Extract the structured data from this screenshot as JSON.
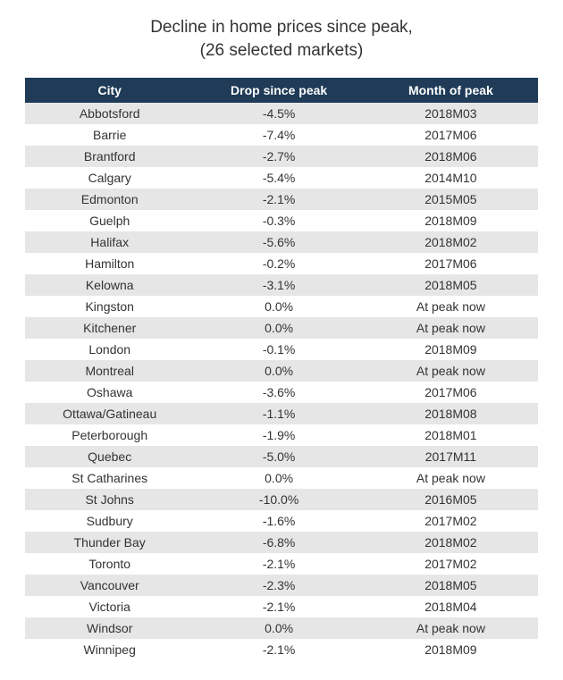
{
  "title": {
    "line1": "Decline in home prices since peak,",
    "line2": "(26 selected markets)"
  },
  "table": {
    "type": "table",
    "header_bg": "#1f3b57",
    "header_fg": "#ffffff",
    "row_alt_bg": "#e6e6e6",
    "row_bg": "#ffffff",
    "text_color": "#333333",
    "font_size": 14,
    "columns": [
      {
        "key": "city",
        "label": "City",
        "width": "33%",
        "align": "center"
      },
      {
        "key": "drop",
        "label": "Drop since peak",
        "width": "33%",
        "align": "center"
      },
      {
        "key": "month",
        "label": "Month of peak",
        "width": "34%",
        "align": "center"
      }
    ],
    "rows": [
      {
        "city": "Abbotsford",
        "drop": "-4.5%",
        "month": "2018M03"
      },
      {
        "city": "Barrie",
        "drop": "-7.4%",
        "month": "2017M06"
      },
      {
        "city": "Brantford",
        "drop": "-2.7%",
        "month": "2018M06"
      },
      {
        "city": "Calgary",
        "drop": "-5.4%",
        "month": "2014M10"
      },
      {
        "city": "Edmonton",
        "drop": "-2.1%",
        "month": "2015M05"
      },
      {
        "city": "Guelph",
        "drop": "-0.3%",
        "month": "2018M09"
      },
      {
        "city": "Halifax",
        "drop": "-5.6%",
        "month": "2018M02"
      },
      {
        "city": "Hamilton",
        "drop": "-0.2%",
        "month": "2017M06"
      },
      {
        "city": "Kelowna",
        "drop": "-3.1%",
        "month": "2018M05"
      },
      {
        "city": "Kingston",
        "drop": "0.0%",
        "month": "At peak now"
      },
      {
        "city": "Kitchener",
        "drop": "0.0%",
        "month": "At peak now"
      },
      {
        "city": "London",
        "drop": "-0.1%",
        "month": "2018M09"
      },
      {
        "city": "Montreal",
        "drop": "0.0%",
        "month": "At peak now"
      },
      {
        "city": "Oshawa",
        "drop": "-3.6%",
        "month": "2017M06"
      },
      {
        "city": "Ottawa/Gatineau",
        "drop": "-1.1%",
        "month": "2018M08"
      },
      {
        "city": "Peterborough",
        "drop": "-1.9%",
        "month": "2018M01"
      },
      {
        "city": "Quebec",
        "drop": "-5.0%",
        "month": "2017M11"
      },
      {
        "city": "St Catharines",
        "drop": "0.0%",
        "month": "At peak now"
      },
      {
        "city": "St Johns",
        "drop": "-10.0%",
        "month": "2016M05"
      },
      {
        "city": "Sudbury",
        "drop": "-1.6%",
        "month": "2017M02"
      },
      {
        "city": "Thunder Bay",
        "drop": "-6.8%",
        "month": "2018M02"
      },
      {
        "city": "Toronto",
        "drop": "-2.1%",
        "month": "2017M02"
      },
      {
        "city": "Vancouver",
        "drop": "-2.3%",
        "month": "2018M05"
      },
      {
        "city": "Victoria",
        "drop": "-2.1%",
        "month": "2018M04"
      },
      {
        "city": "Windsor",
        "drop": "0.0%",
        "month": "At peak now"
      },
      {
        "city": "Winnipeg",
        "drop": "-2.1%",
        "month": "2018M09"
      }
    ]
  }
}
